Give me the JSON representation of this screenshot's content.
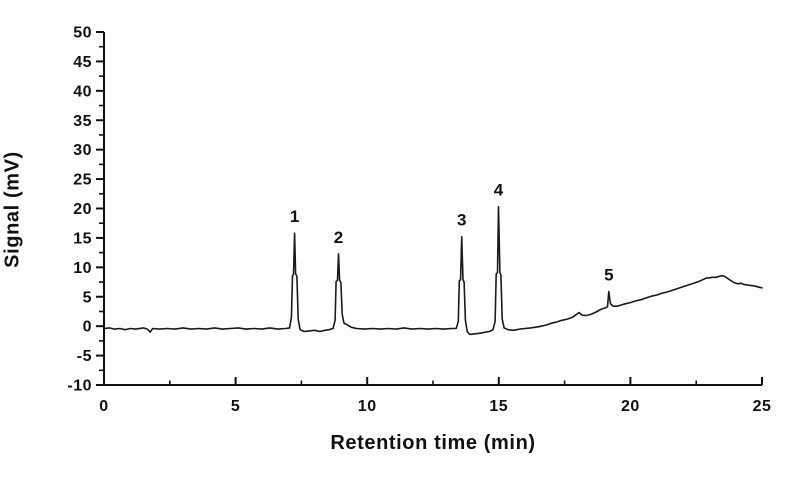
{
  "figure": {
    "background_color": "#ffffff",
    "axis_color": "#111111",
    "text_color": "#111111"
  },
  "chart_data": {
    "type": "line",
    "title": "",
    "xlabel": "Retention time (min)",
    "ylabel": "Signal (mV)",
    "xlim": [
      0,
      25
    ],
    "ylim": [
      -10,
      50
    ],
    "x_major_ticks": [
      0,
      5,
      10,
      15,
      20,
      25
    ],
    "x_minor_step": 2.5,
    "y_major_ticks": [
      -10,
      -5,
      0,
      5,
      10,
      15,
      20,
      25,
      30,
      35,
      40,
      45,
      50
    ],
    "y_minor_step": 2.5,
    "grid": false,
    "legend": "none",
    "line_color": "#1a1a1a",
    "line_width": 1.6,
    "peaks": [
      {
        "label": "1",
        "retention_time_min": 7.24,
        "height_mV": 15.8
      },
      {
        "label": "2",
        "retention_time_min": 8.91,
        "height_mV": 12.3
      },
      {
        "label": "3",
        "retention_time_min": 13.59,
        "height_mV": 15.2
      },
      {
        "label": "4",
        "retention_time_min": 14.99,
        "height_mV": 20.3
      },
      {
        "label": "5",
        "retention_time_min": 19.18,
        "height_mV": 5.9
      }
    ],
    "series": [
      {
        "name": "chromatogram",
        "points": [
          [
            0,
            -0.4
          ],
          [
            0.2,
            -0.3
          ],
          [
            0.4,
            -0.5
          ],
          [
            0.6,
            -0.4
          ],
          [
            0.8,
            -0.6
          ],
          [
            1.0,
            -0.4
          ],
          [
            1.2,
            -0.5
          ],
          [
            1.5,
            -0.3
          ],
          [
            1.65,
            -0.5
          ],
          [
            1.75,
            -1.0
          ],
          [
            1.85,
            -0.4
          ],
          [
            2.1,
            -0.5
          ],
          [
            2.4,
            -0.4
          ],
          [
            2.7,
            -0.5
          ],
          [
            3.0,
            -0.3
          ],
          [
            3.3,
            -0.5
          ],
          [
            3.6,
            -0.4
          ],
          [
            3.9,
            -0.5
          ],
          [
            4.2,
            -0.3
          ],
          [
            4.5,
            -0.5
          ],
          [
            4.8,
            -0.4
          ],
          [
            5.1,
            -0.3
          ],
          [
            5.4,
            -0.5
          ],
          [
            5.7,
            -0.4
          ],
          [
            6.0,
            -0.5
          ],
          [
            6.3,
            -0.3
          ],
          [
            6.6,
            -0.5
          ],
          [
            6.9,
            -0.4
          ],
          [
            7.05,
            -0.3
          ],
          [
            7.12,
            1.5
          ],
          [
            7.16,
            8.6
          ],
          [
            7.2,
            8.8
          ],
          [
            7.24,
            15.8
          ],
          [
            7.28,
            8.9
          ],
          [
            7.33,
            8.5
          ],
          [
            7.38,
            1.2
          ],
          [
            7.45,
            -0.6
          ],
          [
            7.6,
            -0.9
          ],
          [
            7.8,
            -0.8
          ],
          [
            8.0,
            -0.7
          ],
          [
            8.2,
            -0.9
          ],
          [
            8.4,
            -0.7
          ],
          [
            8.55,
            -0.6
          ],
          [
            8.7,
            -0.4
          ],
          [
            8.78,
            1.0
          ],
          [
            8.82,
            7.6
          ],
          [
            8.87,
            7.8
          ],
          [
            8.91,
            12.3
          ],
          [
            8.95,
            7.8
          ],
          [
            9.0,
            7.4
          ],
          [
            9.05,
            2.0
          ],
          [
            9.12,
            0.5
          ],
          [
            9.25,
            0.2
          ],
          [
            9.4,
            -0.2
          ],
          [
            9.6,
            -0.4
          ],
          [
            9.9,
            -0.5
          ],
          [
            10.2,
            -0.4
          ],
          [
            10.5,
            -0.5
          ],
          [
            10.8,
            -0.4
          ],
          [
            11.1,
            -0.5
          ],
          [
            11.4,
            -0.3
          ],
          [
            11.7,
            -0.5
          ],
          [
            12.0,
            -0.4
          ],
          [
            12.3,
            -0.5
          ],
          [
            12.6,
            -0.4
          ],
          [
            12.9,
            -0.5
          ],
          [
            13.2,
            -0.4
          ],
          [
            13.38,
            -0.4
          ],
          [
            13.46,
            0.8
          ],
          [
            13.5,
            7.7
          ],
          [
            13.55,
            7.9
          ],
          [
            13.59,
            15.2
          ],
          [
            13.64,
            7.9
          ],
          [
            13.68,
            7.5
          ],
          [
            13.73,
            1.0
          ],
          [
            13.8,
            -0.9
          ],
          [
            13.9,
            -1.4
          ],
          [
            14.1,
            -1.3
          ],
          [
            14.3,
            -1.2
          ],
          [
            14.5,
            -1.0
          ],
          [
            14.65,
            -0.9
          ],
          [
            14.78,
            -0.6
          ],
          [
            14.86,
            0.8
          ],
          [
            14.9,
            8.9
          ],
          [
            14.95,
            9.1
          ],
          [
            14.99,
            20.3
          ],
          [
            15.04,
            9.1
          ],
          [
            15.08,
            8.7
          ],
          [
            15.13,
            1.2
          ],
          [
            15.2,
            -0.3
          ],
          [
            15.35,
            -0.6
          ],
          [
            15.55,
            -0.7
          ],
          [
            15.8,
            -0.5
          ],
          [
            16.0,
            -0.4
          ],
          [
            16.2,
            -0.3
          ],
          [
            16.5,
            -0.1
          ],
          [
            16.8,
            0.2
          ],
          [
            17.0,
            0.5
          ],
          [
            17.2,
            0.7
          ],
          [
            17.4,
            1.0
          ],
          [
            17.6,
            1.2
          ],
          [
            17.8,
            1.5
          ],
          [
            17.95,
            2.0
          ],
          [
            18.05,
            2.3
          ],
          [
            18.15,
            1.9
          ],
          [
            18.3,
            1.8
          ],
          [
            18.5,
            2.0
          ],
          [
            18.7,
            2.4
          ],
          [
            18.9,
            2.9
          ],
          [
            19.05,
            3.1
          ],
          [
            19.13,
            3.3
          ],
          [
            19.18,
            5.9
          ],
          [
            19.24,
            3.8
          ],
          [
            19.35,
            3.4
          ],
          [
            19.5,
            3.4
          ],
          [
            19.65,
            3.6
          ],
          [
            19.8,
            3.8
          ],
          [
            20.0,
            4.0
          ],
          [
            20.2,
            4.3
          ],
          [
            20.4,
            4.5
          ],
          [
            20.6,
            4.8
          ],
          [
            20.8,
            5.1
          ],
          [
            21.0,
            5.3
          ],
          [
            21.2,
            5.6
          ],
          [
            21.4,
            5.8
          ],
          [
            21.6,
            6.1
          ],
          [
            21.8,
            6.4
          ],
          [
            22.0,
            6.7
          ],
          [
            22.2,
            7.0
          ],
          [
            22.4,
            7.3
          ],
          [
            22.6,
            7.6
          ],
          [
            22.75,
            7.9
          ],
          [
            22.9,
            8.2
          ],
          [
            23.0,
            8.2
          ],
          [
            23.1,
            8.3
          ],
          [
            23.25,
            8.3
          ],
          [
            23.4,
            8.5
          ],
          [
            23.5,
            8.6
          ],
          [
            23.6,
            8.4
          ],
          [
            23.7,
            8.1
          ],
          [
            23.8,
            7.8
          ],
          [
            23.9,
            7.5
          ],
          [
            24.0,
            7.3
          ],
          [
            24.1,
            7.2
          ],
          [
            24.2,
            7.3
          ],
          [
            24.3,
            7.1
          ],
          [
            24.45,
            7.0
          ],
          [
            24.6,
            6.9
          ],
          [
            24.75,
            6.8
          ],
          [
            24.9,
            6.6
          ],
          [
            25.0,
            6.5
          ]
        ]
      }
    ]
  }
}
